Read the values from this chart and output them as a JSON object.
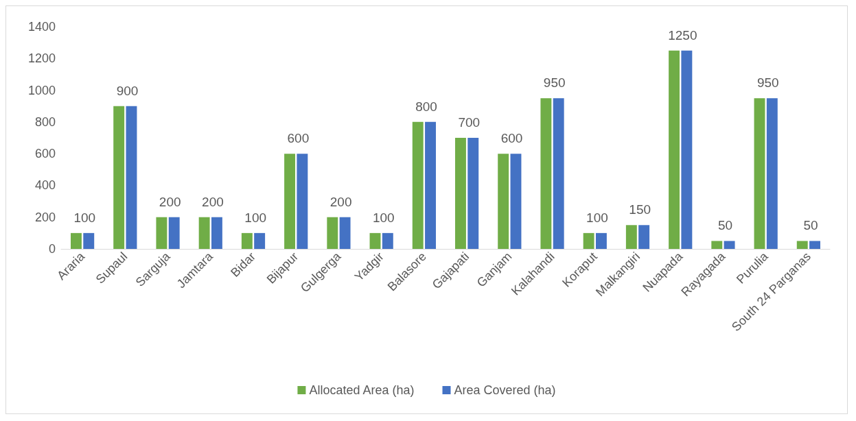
{
  "chart_data": {
    "type": "bar",
    "categories": [
      "Araria",
      "Supaul",
      "Sarguja",
      "Jamtara",
      "Bidar",
      "Bijapur",
      "Gulgerga",
      "Yadgir",
      "Balasore",
      "Gajapati",
      "Ganjam",
      "Kalahandi",
      "Koraput",
      "Malkangiri",
      "Nuapada",
      "Rayagada",
      "Purulia",
      "South 24 Parganas"
    ],
    "series": [
      {
        "name": "Allocated Area (ha)",
        "color": "#70ad47",
        "values": [
          100,
          900,
          200,
          200,
          100,
          600,
          200,
          100,
          800,
          700,
          600,
          950,
          100,
          150,
          1250,
          50,
          950,
          50
        ]
      },
      {
        "name": "Area Covered (ha)",
        "color": "#4472c4",
        "values": [
          100,
          900,
          200,
          200,
          100,
          600,
          200,
          100,
          800,
          700,
          600,
          950,
          100,
          150,
          1250,
          50,
          950,
          50
        ],
        "value_labels": [
          "100",
          "900",
          "200",
          "200",
          "100",
          "600",
          "200",
          "100",
          "800",
          "700",
          "600",
          "950",
          "100",
          "150",
          "1250",
          "50",
          "950",
          "50"
        ]
      }
    ],
    "ylim": [
      0,
      1400
    ],
    "yticks": [
      0,
      200,
      400,
      600,
      800,
      1000,
      1200,
      1400
    ],
    "grid": false,
    "legend": "bottom"
  }
}
